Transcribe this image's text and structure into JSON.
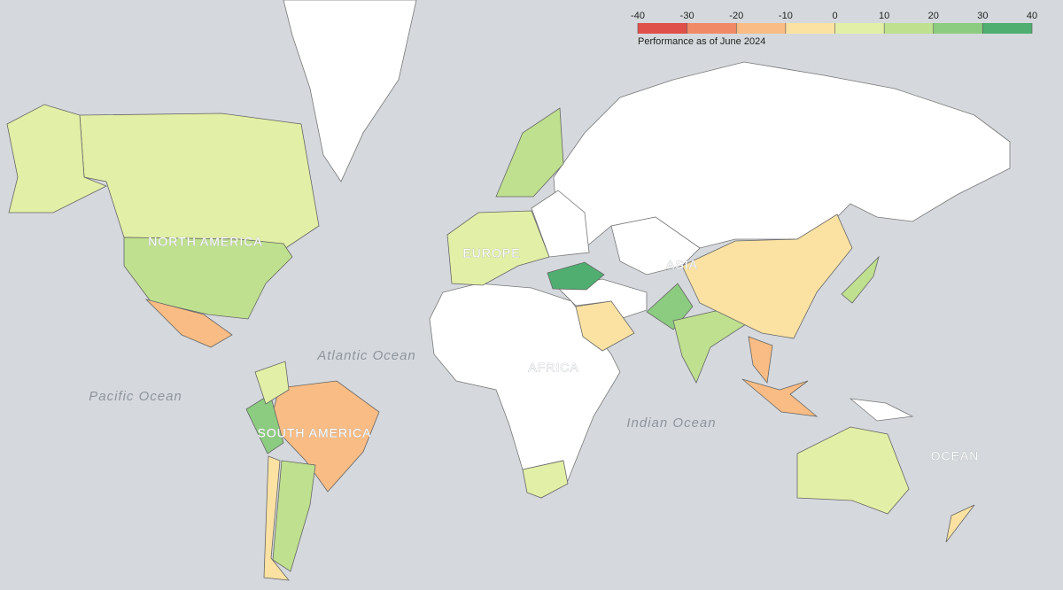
{
  "legend": {
    "title": "Performance as of June 2024",
    "ticks": [
      -40,
      -30,
      -20,
      -10,
      0,
      10,
      20,
      30,
      40
    ],
    "colors": [
      "#e0504a",
      "#f08a66",
      "#f9bc84",
      "#fbe2a2",
      "#e2efa6",
      "#bfe08e",
      "#8ccc80",
      "#4fae70"
    ]
  },
  "map_labels": [
    "NORTH AMERICA",
    "SOUTH AMERICA",
    "EUROPE",
    "AFRICA",
    "ASIA",
    "Atlantic Ocean",
    "Pacific Ocean",
    "Indian Ocean",
    "OCEAN"
  ],
  "regions": [
    {
      "value": 5
    },
    {
      "value": 8
    },
    {
      "value": 12
    },
    {
      "value": -15
    },
    {
      "value": -15
    },
    {
      "value": 22
    },
    {
      "value": 5
    },
    {
      "value": 10
    },
    {
      "value": -5
    },
    {
      "value": 5
    },
    {
      "value": 10
    },
    {
      "value": 30
    },
    {
      "value": -5
    },
    {
      "value": 20
    },
    {
      "value": 10
    },
    {
      "value": -5
    },
    {
      "value": -15
    },
    {
      "value": -15
    },
    {
      "value": 5
    },
    {
      "value": 5
    },
    {
      "value": 10
    },
    {
      "value": -5
    }
  ]
}
